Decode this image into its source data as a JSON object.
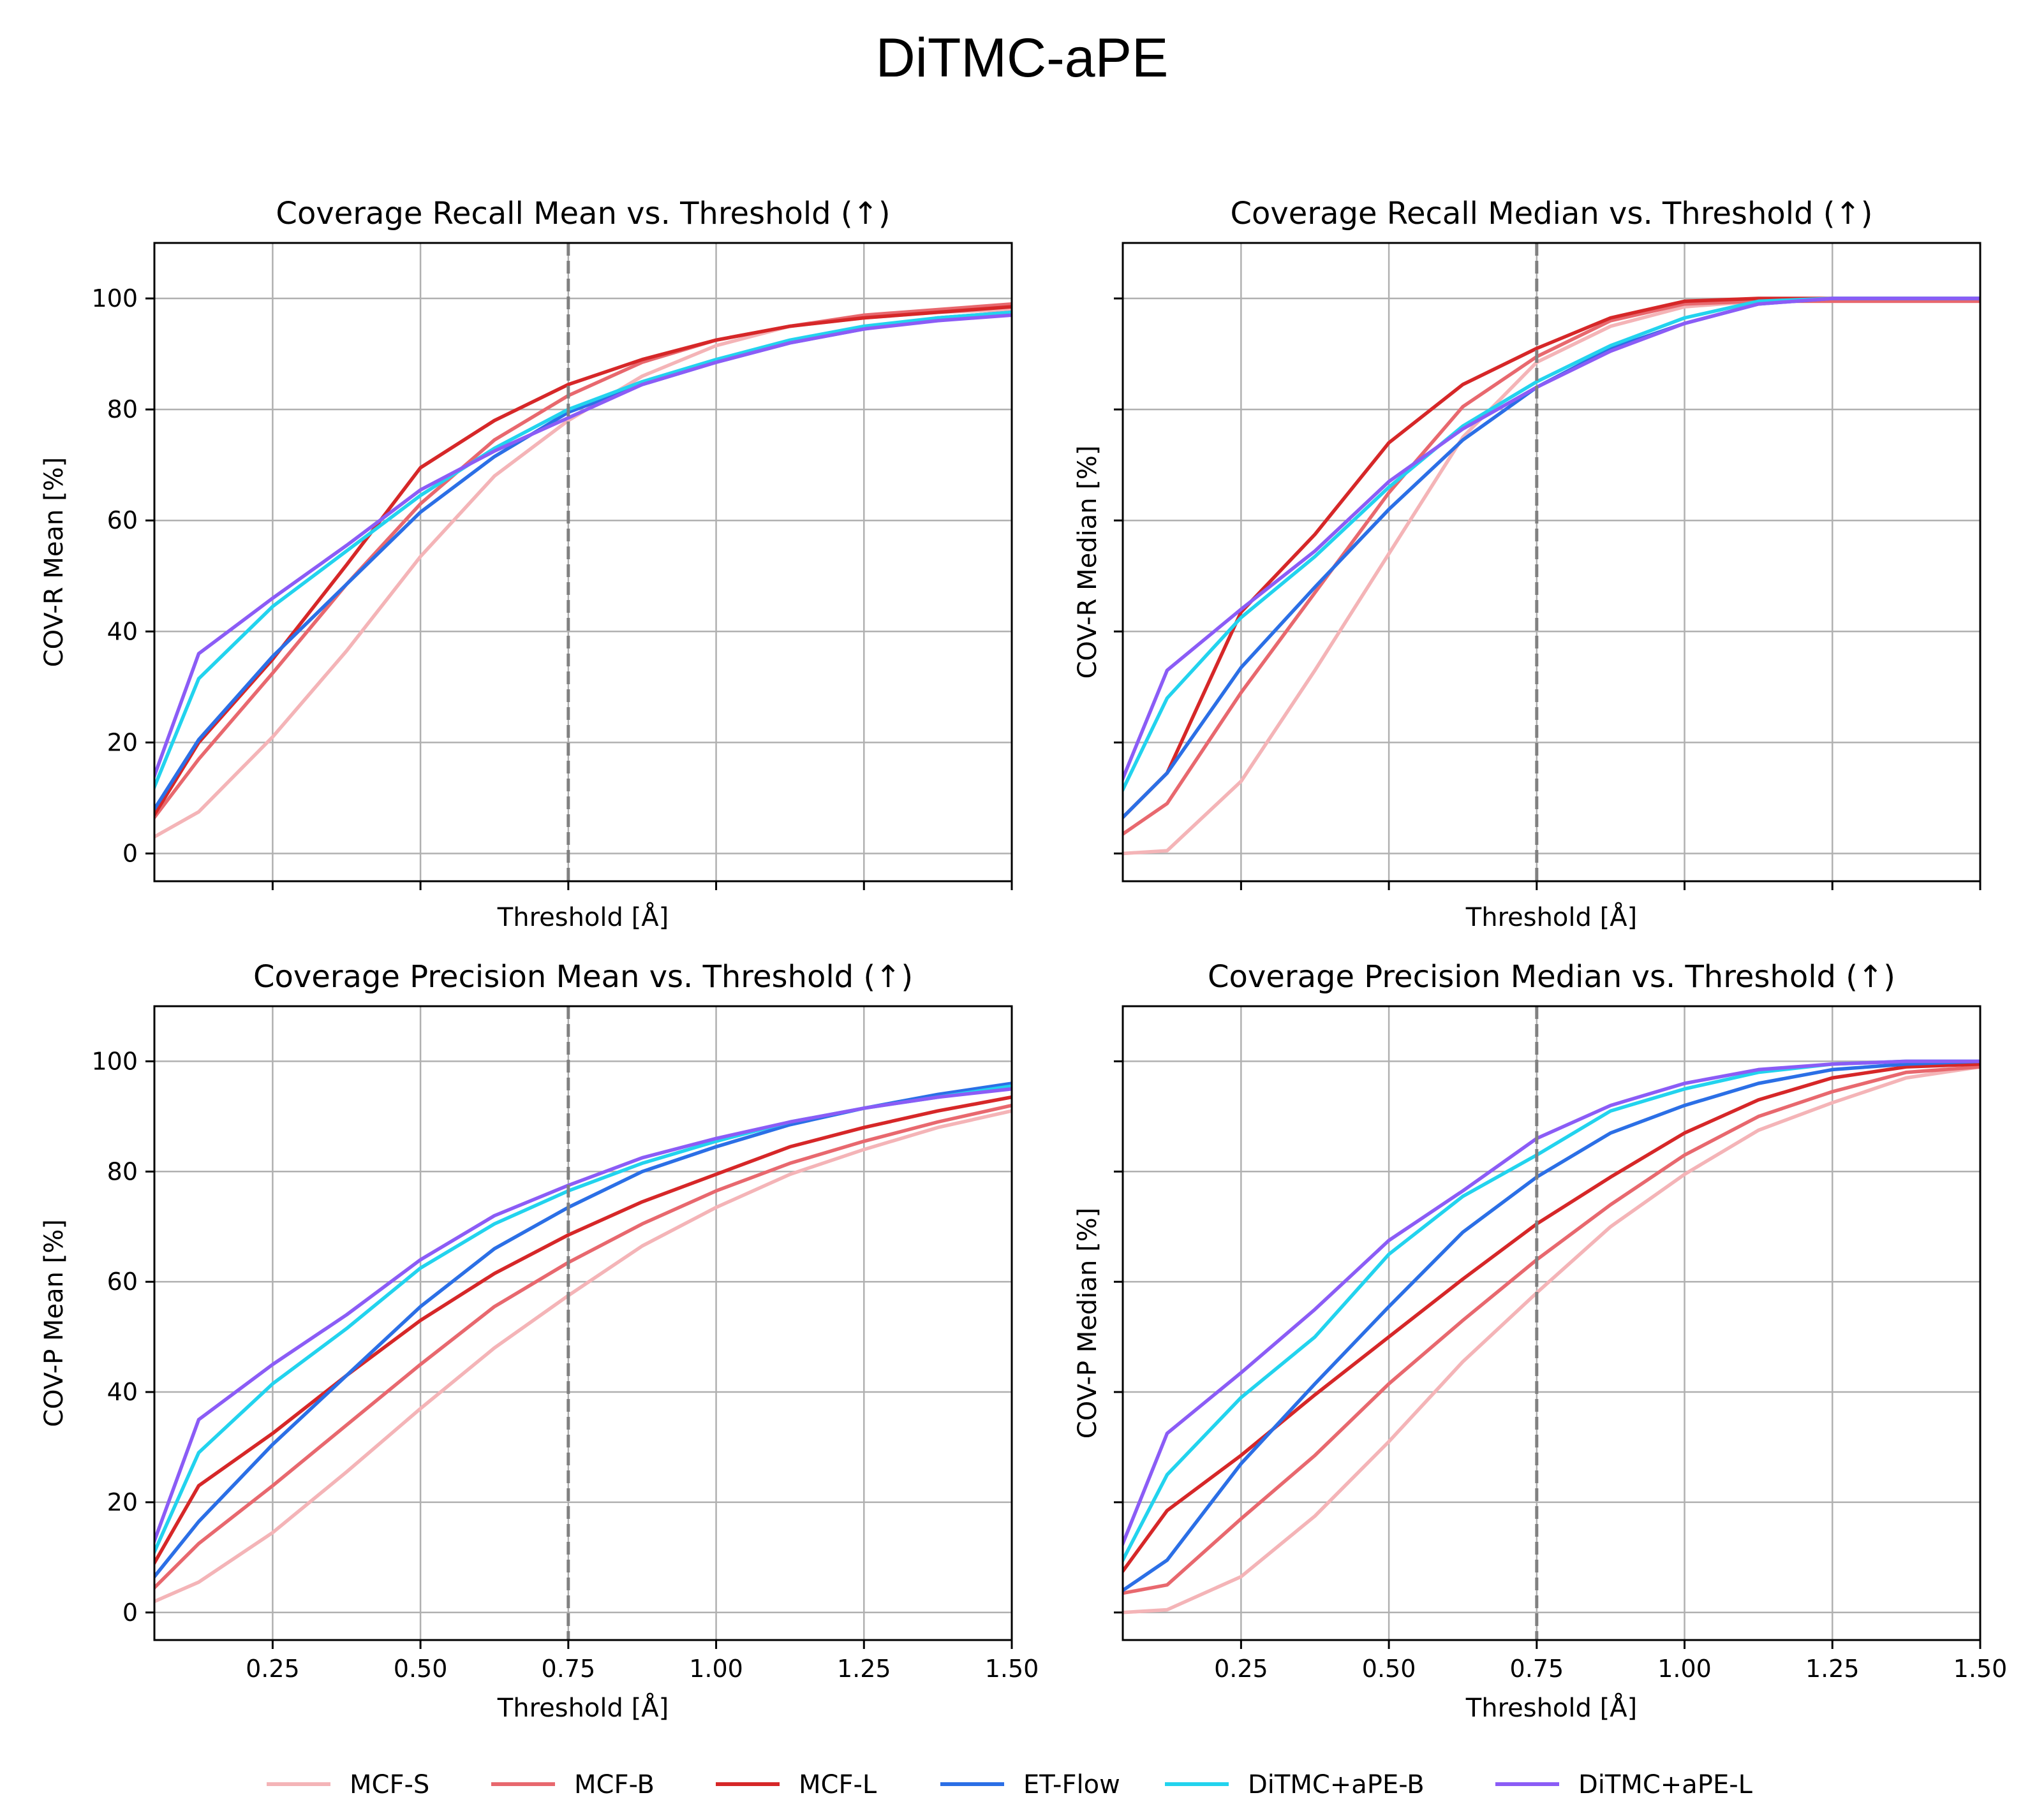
{
  "figure_title": "DiTMC-aPE",
  "colors": {
    "MCF-S": "#f4b4b7",
    "MCF-B": "#e8686e",
    "MCF-L": "#d62728",
    "ET-Flow": "#2b6fe6",
    "DiTMC+aPE-B": "#22d3ee",
    "DiTMC+aPE-L": "#8b5cf6",
    "grid": "#b0b0b0",
    "reference_line": "#808080"
  },
  "legend": {
    "position": "bottom-center",
    "labels": [
      "MCF-S",
      "MCF-B",
      "MCF-L",
      "ET-Flow",
      "DiTMC+aPE-B",
      "DiTMC+aPE-L"
    ]
  },
  "chart_data": [
    {
      "type": "line",
      "title": "Coverage Recall Mean vs. Threshold (↑)",
      "xlabel": "Threshold [Å]",
      "ylabel": "COV-R Mean [%]",
      "xlim": [
        0.05,
        1.5
      ],
      "ylim": [
        -5,
        110
      ],
      "xticks": [
        "0.25",
        "0.50",
        "0.75",
        "1.00",
        "1.25",
        "1.50"
      ],
      "show_xtick_labels": false,
      "yticks": [
        "0",
        "20",
        "40",
        "60",
        "80",
        "100"
      ],
      "show_ytick_labels": true,
      "grid": true,
      "reference_x": 0.75,
      "x": [
        0.05,
        0.125,
        0.25,
        0.375,
        0.5,
        0.625,
        0.75,
        0.875,
        1.0,
        1.125,
        1.25,
        1.375,
        1.5
      ],
      "series": [
        {
          "name": "MCF-S",
          "values": [
            3,
            7.5,
            21,
            36.5,
            53.5,
            68,
            78,
            86,
            91.5,
            95,
            96.5,
            97.5,
            98
          ]
        },
        {
          "name": "MCF-B",
          "values": [
            6.5,
            17,
            32.5,
            48.5,
            63,
            74.5,
            82.5,
            88.5,
            92.5,
            95,
            97,
            98,
            99
          ]
        },
        {
          "name": "MCF-L",
          "values": [
            7,
            20,
            35,
            52,
            69.5,
            78,
            84.5,
            89,
            92.5,
            95,
            96.5,
            97.5,
            98.5
          ]
        },
        {
          "name": "ET-Flow",
          "values": [
            8,
            20.5,
            35.5,
            48.5,
            61.5,
            71.5,
            79.5,
            84.5,
            88.5,
            92,
            94.5,
            96.5,
            97.5
          ]
        },
        {
          "name": "DiTMC+aPE-B",
          "values": [
            12,
            31.5,
            44.5,
            54.5,
            64.5,
            73,
            80,
            85,
            89,
            92.5,
            95,
            96.5,
            97.5
          ]
        },
        {
          "name": "DiTMC+aPE-L",
          "values": [
            14,
            36,
            46,
            55.5,
            65.5,
            72.5,
            78.5,
            84.5,
            88.5,
            92,
            94.5,
            96,
            97
          ]
        }
      ]
    },
    {
      "type": "line",
      "title": "Coverage Recall Median vs. Threshold (↑)",
      "xlabel": "Threshold [Å]",
      "ylabel": "COV-R Median [%]",
      "xlim": [
        0.05,
        1.5
      ],
      "ylim": [
        -5,
        110
      ],
      "xticks": [
        "0.25",
        "0.50",
        "0.75",
        "1.00",
        "1.25",
        "1.50"
      ],
      "show_xtick_labels": false,
      "yticks": [
        "0",
        "20",
        "40",
        "60",
        "80",
        "100"
      ],
      "show_ytick_labels": false,
      "grid": true,
      "reference_x": 0.75,
      "x": [
        0.05,
        0.125,
        0.25,
        0.375,
        0.5,
        0.625,
        0.75,
        0.875,
        1.0,
        1.125,
        1.25,
        1.375,
        1.5
      ],
      "series": [
        {
          "name": "MCF-S",
          "values": [
            0,
            0.5,
            13,
            33,
            54,
            75,
            88.5,
            95,
            98.5,
            99.5,
            99.5,
            99.5,
            99.5
          ]
        },
        {
          "name": "MCF-B",
          "values": [
            3.5,
            9,
            29,
            47,
            65,
            80.5,
            89.5,
            96,
            99,
            99.5,
            99.5,
            99.5,
            99.5
          ]
        },
        {
          "name": "MCF-L",
          "values": [
            6.5,
            14.5,
            43.5,
            57.5,
            74,
            84.5,
            91,
            96.5,
            99.5,
            100,
            100,
            100,
            100
          ]
        },
        {
          "name": "ET-Flow",
          "values": [
            6.5,
            14.5,
            33.5,
            48,
            62,
            74.5,
            84,
            91,
            95.5,
            99,
            100,
            100,
            100
          ]
        },
        {
          "name": "DiTMC+aPE-B",
          "values": [
            11.5,
            28,
            42.5,
            53.5,
            66,
            77,
            85,
            91.5,
            96.5,
            99.5,
            100,
            100,
            100
          ]
        },
        {
          "name": "DiTMC+aPE-L",
          "values": [
            13.5,
            33,
            44,
            54.5,
            67,
            76.5,
            84,
            90.5,
            95.5,
            99,
            100,
            100,
            100
          ]
        }
      ]
    },
    {
      "type": "line",
      "title": "Coverage Precision Mean vs. Threshold (↑)",
      "xlabel": "Threshold [Å]",
      "ylabel": "COV-P Mean [%]",
      "xlim": [
        0.05,
        1.5
      ],
      "ylim": [
        -5,
        110
      ],
      "xticks": [
        "0.25",
        "0.50",
        "0.75",
        "1.00",
        "1.25",
        "1.50"
      ],
      "show_xtick_labels": true,
      "yticks": [
        "0",
        "20",
        "40",
        "60",
        "80",
        "100"
      ],
      "show_ytick_labels": true,
      "grid": true,
      "reference_x": 0.75,
      "x": [
        0.05,
        0.125,
        0.25,
        0.375,
        0.5,
        0.625,
        0.75,
        0.875,
        1.0,
        1.125,
        1.25,
        1.375,
        1.5
      ],
      "series": [
        {
          "name": "MCF-S",
          "values": [
            2,
            5.5,
            14.5,
            25.5,
            37,
            48,
            57.5,
            66.5,
            73.5,
            79.5,
            84,
            88,
            91
          ]
        },
        {
          "name": "MCF-B",
          "values": [
            4.5,
            12.5,
            23,
            34,
            45,
            55.5,
            63.5,
            70.5,
            76.5,
            81.5,
            85.5,
            89,
            92
          ]
        },
        {
          "name": "MCF-L",
          "values": [
            9,
            23,
            32.5,
            43,
            53,
            61.5,
            68.5,
            74.5,
            79.5,
            84.5,
            88,
            91,
            93.5
          ]
        },
        {
          "name": "ET-Flow",
          "values": [
            6.5,
            16.5,
            30.5,
            43,
            55.5,
            66,
            73.5,
            80,
            84.5,
            88.5,
            91.5,
            94,
            96
          ]
        },
        {
          "name": "DiTMC+aPE-B",
          "values": [
            11,
            29,
            41.5,
            51.5,
            62.5,
            70.5,
            76.5,
            81.5,
            85.5,
            89,
            91.5,
            93.5,
            95.5
          ]
        },
        {
          "name": "DiTMC+aPE-L",
          "values": [
            13,
            35,
            45,
            54,
            64,
            72,
            77.5,
            82.5,
            86,
            89,
            91.5,
            93.5,
            95
          ]
        }
      ]
    },
    {
      "type": "line",
      "title": "Coverage Precision Median vs. Threshold (↑)",
      "xlabel": "Threshold [Å]",
      "ylabel": "COV-P Median [%]",
      "xlim": [
        0.05,
        1.5
      ],
      "ylim": [
        -5,
        110
      ],
      "xticks": [
        "0.25",
        "0.50",
        "0.75",
        "1.00",
        "1.25",
        "1.50"
      ],
      "show_xtick_labels": true,
      "yticks": [
        "0",
        "20",
        "40",
        "60",
        "80",
        "100"
      ],
      "show_ytick_labels": false,
      "grid": true,
      "reference_x": 0.75,
      "x": [
        0.05,
        0.125,
        0.25,
        0.375,
        0.5,
        0.625,
        0.75,
        0.875,
        1.0,
        1.125,
        1.25,
        1.375,
        1.5
      ],
      "series": [
        {
          "name": "MCF-S",
          "values": [
            0,
            0.5,
            6.5,
            17.5,
            31,
            45.5,
            58,
            70,
            79.5,
            87.5,
            92.5,
            97,
            99
          ]
        },
        {
          "name": "MCF-B",
          "values": [
            3.5,
            5,
            17,
            28.5,
            41.5,
            53,
            64,
            74,
            83,
            90,
            94.5,
            98,
            99
          ]
        },
        {
          "name": "MCF-L",
          "values": [
            7.5,
            18.5,
            28.5,
            39.5,
            50,
            60.5,
            70.5,
            79,
            87,
            93,
            97,
            99,
            99.5
          ]
        },
        {
          "name": "ET-Flow",
          "values": [
            4,
            9.5,
            27,
            41.5,
            55.5,
            69,
            79,
            87,
            92,
            96,
            98.5,
            99.5,
            100
          ]
        },
        {
          "name": "DiTMC+aPE-B",
          "values": [
            9.5,
            25,
            39,
            50,
            65,
            75.5,
            83,
            91,
            95,
            98,
            99.5,
            100,
            100
          ]
        },
        {
          "name": "DiTMC+aPE-L",
          "values": [
            12.5,
            32.5,
            43.5,
            55,
            67.5,
            76.5,
            86,
            92,
            96,
            98.5,
            99.5,
            100,
            100
          ]
        }
      ]
    }
  ]
}
